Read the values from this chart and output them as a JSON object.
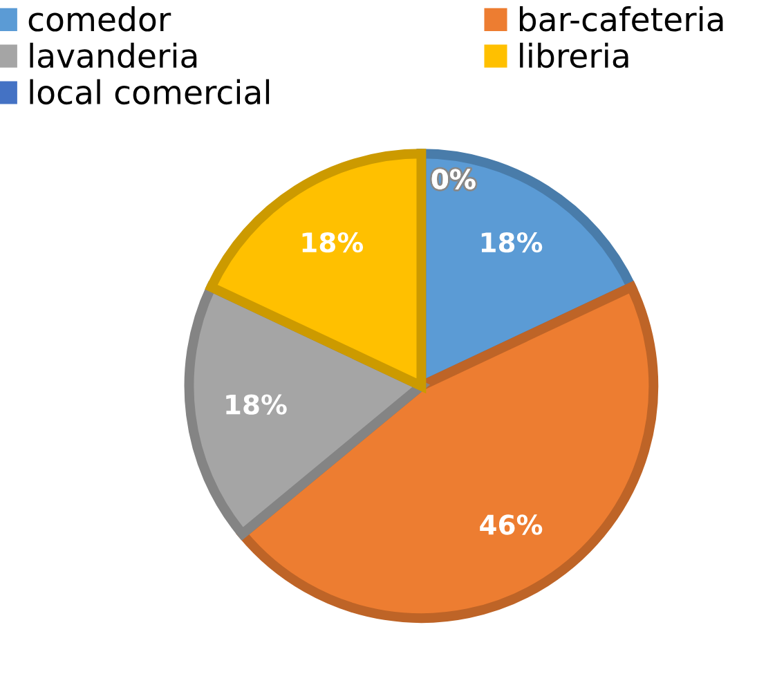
{
  "chart_data": {
    "type": "pie",
    "categories": [
      "comedor",
      "bar-cafeteria",
      "lavanderia",
      "libreria",
      "local comercial"
    ],
    "values": [
      18,
      46,
      18,
      18,
      0
    ],
    "colors": [
      "#5b9bd5",
      "#ed7d31",
      "#a5a5a5",
      "#ffc000",
      "#4472c4"
    ],
    "value_labels": [
      "18%",
      "46%",
      "18%",
      "18%",
      "0%"
    ],
    "legend": "top"
  }
}
